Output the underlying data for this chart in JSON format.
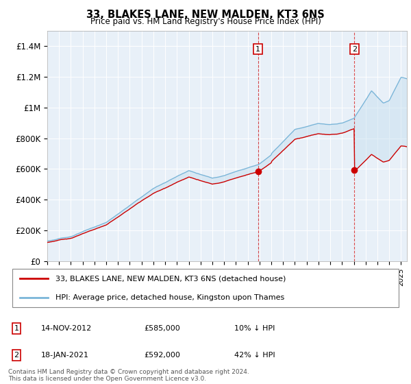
{
  "title": "33, BLAKES LANE, NEW MALDEN, KT3 6NS",
  "subtitle": "Price paid vs. HM Land Registry's House Price Index (HPI)",
  "legend_line1": "33, BLAKES LANE, NEW MALDEN, KT3 6NS (detached house)",
  "legend_line2": "HPI: Average price, detached house, Kingston upon Thames",
  "annotation1_label": "1",
  "annotation1_date": "14-NOV-2012",
  "annotation1_price": "£585,000",
  "annotation1_hpi": "10% ↓ HPI",
  "annotation2_label": "2",
  "annotation2_date": "18-JAN-2021",
  "annotation2_price": "£592,000",
  "annotation2_hpi": "42% ↓ HPI",
  "footnote": "Contains HM Land Registry data © Crown copyright and database right 2024.\nThis data is licensed under the Open Government Licence v3.0.",
  "hpi_color": "#7ab5d8",
  "price_color": "#cc0000",
  "fill_color": "#c8dff0",
  "background_color": "#e8f0f8",
  "ylim": [
    0,
    1500000
  ],
  "yticks": [
    0,
    200000,
    400000,
    600000,
    800000,
    1000000,
    1200000,
    1400000
  ],
  "ytick_labels": [
    "£0",
    "£200K",
    "£400K",
    "£600K",
    "£800K",
    "£1M",
    "£1.2M",
    "£1.4M"
  ],
  "sale1_x": 2012.87,
  "sale1_y": 585000,
  "sale2_x": 2021.05,
  "sale2_y": 592000,
  "xmin": 1995,
  "xmax": 2025.5
}
